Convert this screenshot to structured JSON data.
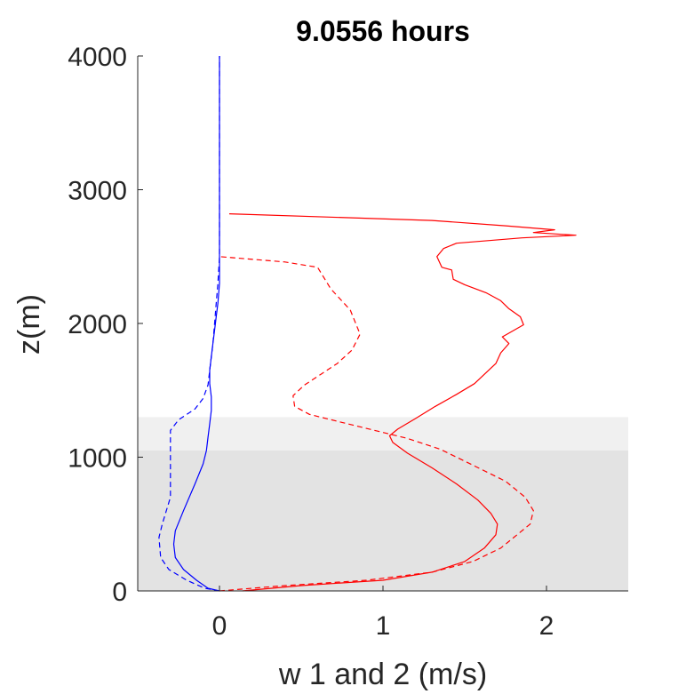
{
  "chart_data": {
    "type": "line",
    "title": "9.0556 hours",
    "xlabel": "w 1 and 2 (m/s)",
    "ylabel": "z(m)",
    "xlim": [
      -0.5,
      2.5
    ],
    "ylim": [
      0,
      4000
    ],
    "xticks": [
      0,
      1,
      2
    ],
    "yticks": [
      0,
      1000,
      2000,
      3000,
      4000
    ],
    "xtick_labels": [
      "0",
      "1",
      "2"
    ],
    "ytick_labels": [
      "0",
      "1000",
      "2000",
      "3000",
      "4000"
    ],
    "grid": false,
    "bands": [
      {
        "z_from": 0,
        "z_to": 1050,
        "color": "#e3e3e3"
      },
      {
        "z_from": 1050,
        "z_to": 1300,
        "color": "#f0f0f0"
      }
    ],
    "series": [
      {
        "color": "#ff0000",
        "dash": "solid",
        "x": [
          0.14,
          0.5,
          1.0,
          1.3,
          1.5,
          1.62,
          1.69,
          1.7,
          1.66,
          1.58,
          1.45,
          1.3,
          1.15,
          1.06,
          1.04,
          1.09,
          1.2,
          1.32,
          1.45,
          1.56,
          1.62,
          1.69,
          1.72,
          1.77,
          1.73,
          1.86,
          1.84,
          1.77,
          1.72,
          1.63,
          1.5,
          1.43,
          1.42,
          1.36,
          1.33,
          1.37,
          1.45,
          1.85,
          2.18,
          1.92,
          2.05,
          1.75,
          1.3,
          0.06
        ],
        "y": [
          0,
          40,
          80,
          140,
          220,
          320,
          420,
          500,
          580,
          680,
          800,
          920,
          1030,
          1110,
          1160,
          1210,
          1290,
          1380,
          1470,
          1550,
          1620,
          1700,
          1780,
          1850,
          1900,
          1990,
          2050,
          2110,
          2170,
          2230,
          2290,
          2330,
          2400,
          2420,
          2500,
          2560,
          2600,
          2640,
          2660,
          2680,
          2700,
          2730,
          2770,
          2820
        ]
      },
      {
        "color": "#ff0000",
        "dash": "dashed",
        "x": [
          0.0,
          0.4,
          0.9,
          1.3,
          1.55,
          1.72,
          1.82,
          1.9,
          1.92,
          1.87,
          1.75,
          1.55,
          1.35,
          1.15,
          0.95,
          0.75,
          0.55,
          0.46,
          0.45,
          0.52,
          0.62,
          0.72,
          0.81,
          0.86,
          0.8,
          0.68,
          0.6,
          0.4,
          0.0
        ],
        "y": [
          0,
          40,
          80,
          140,
          220,
          320,
          420,
          500,
          600,
          700,
          820,
          940,
          1060,
          1140,
          1200,
          1260,
          1320,
          1380,
          1460,
          1540,
          1620,
          1700,
          1800,
          1920,
          2100,
          2260,
          2420,
          2460,
          2500
        ]
      },
      {
        "color": "#0000ff",
        "dash": "solid",
        "x": [
          0.0,
          -0.07,
          -0.14,
          -0.22,
          -0.27,
          -0.28,
          -0.27,
          -0.22,
          -0.15,
          -0.1,
          -0.08,
          -0.07,
          -0.06,
          -0.05,
          -0.05,
          -0.06,
          -0.06,
          -0.05,
          -0.04,
          -0.03,
          -0.02,
          -0.01,
          0.0,
          0.0,
          0.0
        ],
        "y": [
          0,
          20,
          80,
          160,
          250,
          350,
          450,
          600,
          800,
          950,
          1050,
          1150,
          1250,
          1350,
          1450,
          1550,
          1650,
          1750,
          1850,
          1950,
          2050,
          2150,
          2300,
          2500,
          4000
        ]
      },
      {
        "color": "#0000ff",
        "dash": "dashed",
        "x": [
          0.0,
          -0.09,
          -0.2,
          -0.31,
          -0.36,
          -0.37,
          -0.35,
          -0.3,
          -0.3,
          -0.3,
          -0.25,
          -0.15,
          -0.1,
          -0.07,
          -0.06,
          -0.05,
          -0.04,
          -0.03,
          -0.02,
          -0.01,
          0.0,
          0.0
        ],
        "y": [
          0,
          20,
          80,
          160,
          250,
          400,
          500,
          700,
          1000,
          1200,
          1280,
          1360,
          1440,
          1540,
          1650,
          1750,
          1850,
          2000,
          2150,
          2300,
          2500,
          4000
        ]
      }
    ]
  }
}
